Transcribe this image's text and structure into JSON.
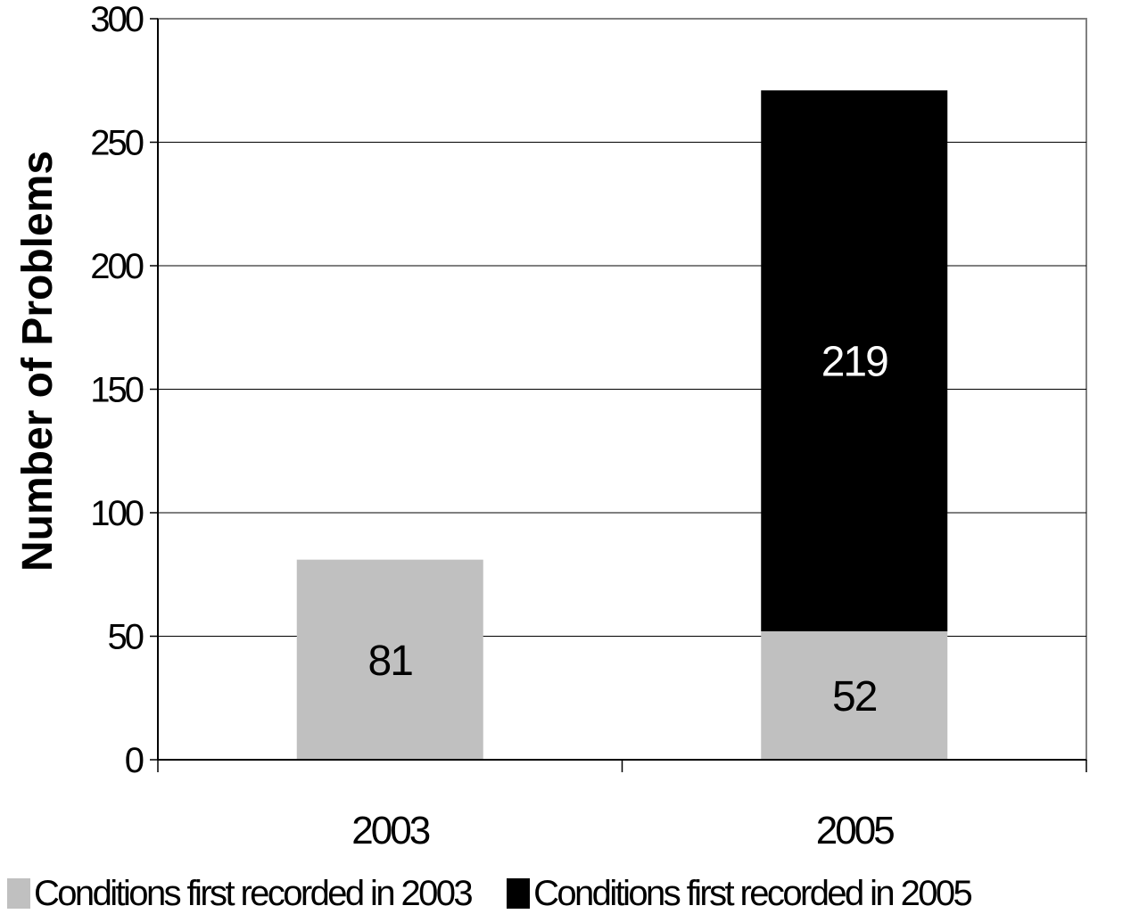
{
  "chart_data": {
    "type": "bar",
    "stacked": true,
    "categories": [
      "2003",
      "2005"
    ],
    "series": [
      {
        "name": "Conditions first recorded in 2003",
        "values": [
          81,
          52
        ],
        "color": "#c0c0c0",
        "label_color": "#000000"
      },
      {
        "name": "Conditions first recorded in 2005",
        "values": [
          0,
          219
        ],
        "color": "#000000",
        "label_color": "#ffffff"
      }
    ],
    "data_labels": [
      [
        "81",
        "52"
      ],
      [
        "",
        "219"
      ]
    ],
    "title": "",
    "xlabel": "",
    "ylabel": "Number of Problems",
    "ylim": [
      0,
      300
    ],
    "yticks": [
      0,
      50,
      100,
      150,
      200,
      250,
      300
    ],
    "grid": true,
    "legend_position": "bottom"
  }
}
